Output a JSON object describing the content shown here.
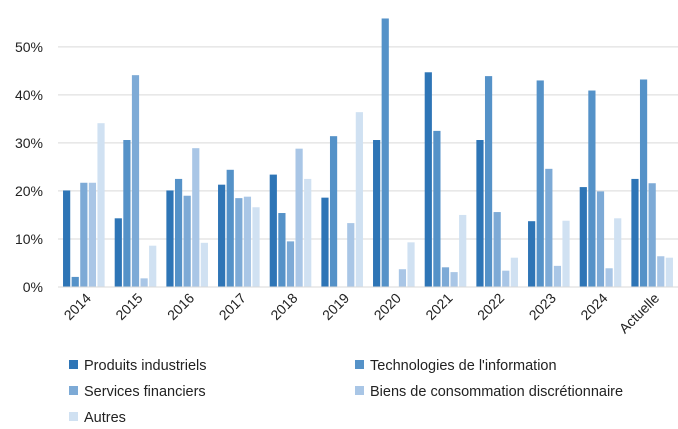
{
  "chart_data": {
    "type": "bar",
    "title": "",
    "xlabel": "",
    "ylabel": "",
    "ylim": [
      0,
      56
    ],
    "yticks": [
      0,
      10,
      20,
      30,
      40,
      50
    ],
    "ytick_labels": [
      "0%",
      "10%",
      "20%",
      "30%",
      "40%",
      "50%"
    ],
    "grid": "horizontal",
    "legend_position": "bottom",
    "categories": [
      "2014",
      "2015",
      "2016",
      "2017",
      "2018",
      "2019",
      "2020",
      "2021",
      "2022",
      "2023",
      "2024",
      "Actuelle"
    ],
    "series": [
      {
        "name": "Produits industriels",
        "color": "#2E75B6",
        "values": [
          20.1,
          14.3,
          20.1,
          21.3,
          23.4,
          18.6,
          30.6,
          44.7,
          30.6,
          13.7,
          20.8,
          22.5
        ]
      },
      {
        "name": "Technologies de l'information",
        "color": "#5592C8",
        "values": [
          2.1,
          30.6,
          22.5,
          24.4,
          15.4,
          31.4,
          55.9,
          32.5,
          43.9,
          43.0,
          40.9,
          43.2
        ]
      },
      {
        "name": "Services financiers",
        "color": "#7DAAD6",
        "values": [
          21.7,
          44.1,
          19.0,
          18.5,
          9.5,
          0,
          0,
          4.1,
          15.6,
          24.6,
          19.9,
          21.6
        ]
      },
      {
        "name": "Biens de consommation discrétionnaire",
        "color": "#A9C6E6",
        "values": [
          21.7,
          1.8,
          28.9,
          18.8,
          28.8,
          13.3,
          3.7,
          3.1,
          3.4,
          4.4,
          3.9,
          6.4
        ]
      },
      {
        "name": "Autres",
        "color": "#D0E1F2",
        "values": [
          34.1,
          8.6,
          9.2,
          16.6,
          22.5,
          36.4,
          9.3,
          15.0,
          6.1,
          13.8,
          14.3,
          6.1
        ]
      }
    ]
  }
}
